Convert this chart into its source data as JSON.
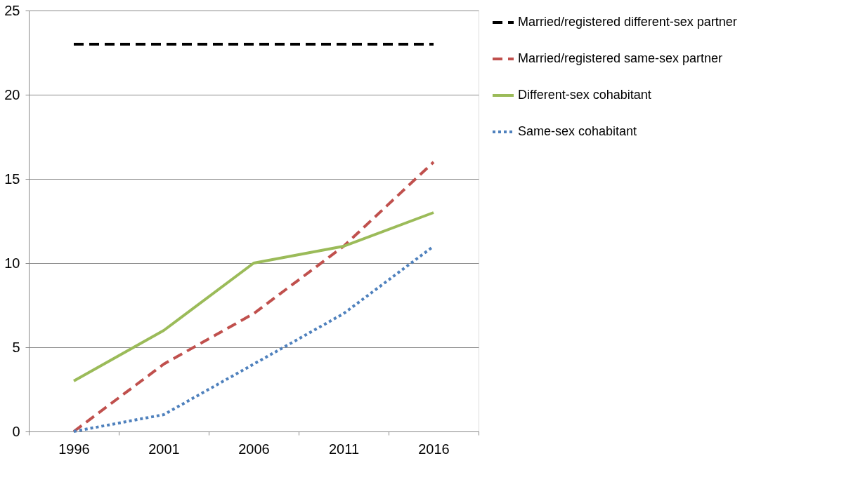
{
  "chart_data": {
    "type": "line",
    "categories": [
      "1996",
      "2001",
      "2006",
      "2011",
      "2016"
    ],
    "series": [
      {
        "name": "Married/registered different-sex partner",
        "color": "#000000",
        "line_style": "dashed",
        "values": [
          23,
          23,
          23,
          23,
          23
        ]
      },
      {
        "name": "Married/registered same-sex partner",
        "color": "#c0504d",
        "line_style": "dashed",
        "values": [
          0,
          4,
          7,
          11,
          16
        ]
      },
      {
        "name": "Different-sex cohabitant",
        "color": "#9bbb59",
        "line_style": "solid",
        "values": [
          3,
          6,
          10,
          11,
          13
        ]
      },
      {
        "name": "Same-sex cohabitant",
        "color": "#4f81bd",
        "line_style": "dotted",
        "values": [
          0,
          1,
          4,
          7,
          11
        ]
      }
    ],
    "ylim": [
      0,
      25
    ],
    "yticks": [
      0,
      5,
      10,
      15,
      20,
      25
    ],
    "grid": "y",
    "legend": "right",
    "marker": "none"
  }
}
